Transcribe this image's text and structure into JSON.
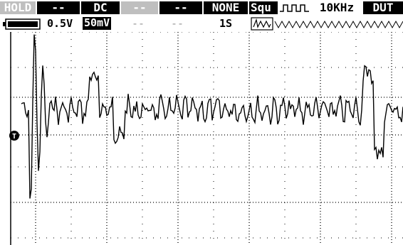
{
  "status_bar": {
    "hold": "HOLD",
    "ch1_mode": "--",
    "coupling": "DC",
    "ch2_mode": "--",
    "math": "--",
    "filter": "NONE",
    "signal": "Squ",
    "frequency": "10KHz",
    "target": "DUT"
  },
  "settings_bar": {
    "battery_icon": "battery-icon",
    "volts_div_ch1": "0.5V",
    "volts_div_ch2": "50mV",
    "field_a": "--",
    "field_b": "--",
    "time_base": "1S",
    "waveform_icon": "waveform-preview-icon"
  },
  "trigger_marker": "T",
  "colors": {
    "grid": "#000000",
    "trace": "#000000",
    "background": "#ffffff",
    "inactive": "#bfbfbf"
  }
}
